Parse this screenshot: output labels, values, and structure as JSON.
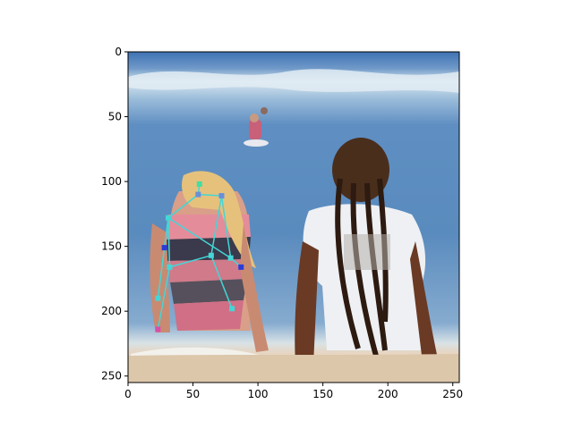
{
  "figure": {
    "kind": "image plot with pose-keypoint overlay",
    "xlim": [
      0,
      255
    ],
    "ylim": [
      255,
      0
    ],
    "x_ticks": [
      {
        "value": 0,
        "label": "0"
      },
      {
        "value": 50,
        "label": "50"
      },
      {
        "value": 100,
        "label": "100"
      },
      {
        "value": 150,
        "label": "150"
      },
      {
        "value": 200,
        "label": "200"
      },
      {
        "value": 250,
        "label": "250"
      }
    ],
    "y_ticks": [
      {
        "value": 0,
        "label": "0"
      },
      {
        "value": 50,
        "label": "50"
      },
      {
        "value": 100,
        "label": "100"
      },
      {
        "value": 150,
        "label": "150"
      },
      {
        "value": 200,
        "label": "200"
      },
      {
        "value": 250,
        "label": "250"
      }
    ],
    "colors": {
      "sky_band": "#3f72b4",
      "sea_deep": "#4f86bd",
      "sea_light": "#8cb1d3",
      "foam": "#d8e6f0",
      "sand": "#e3d3be",
      "skeleton_cyan": "#44d6d6",
      "skeleton_blue": "#6a8fd8",
      "skeleton_magenta": "#d84fa8"
    }
  },
  "keypoints": [
    {
      "name": "head-top",
      "x": 55,
      "y": 102,
      "color": "#3fe0a0"
    },
    {
      "name": "neck",
      "x": 54,
      "y": 110,
      "color": "#6a8fd8"
    },
    {
      "name": "right-shoulder",
      "x": 31,
      "y": 128,
      "color": "#44d6d6"
    },
    {
      "name": "left-shoulder",
      "x": 72,
      "y": 111,
      "color": "#6a8fd8"
    },
    {
      "name": "right-elbow",
      "x": 28,
      "y": 151,
      "color": "#2b3bd8"
    },
    {
      "name": "left-elbow",
      "x": 79,
      "y": 159,
      "color": "#44d6d6"
    },
    {
      "name": "right-wrist",
      "x": 23,
      "y": 190,
      "color": "#44d6d6"
    },
    {
      "name": "left-wrist",
      "x": 87,
      "y": 166,
      "color": "#2b3bd8"
    },
    {
      "name": "right-hip",
      "x": 32,
      "y": 166,
      "color": "#44d6d6"
    },
    {
      "name": "left-hip",
      "x": 64,
      "y": 157,
      "color": "#44d6d6"
    },
    {
      "name": "right-knee",
      "x": 23,
      "y": 214,
      "color": "#d84fa8"
    },
    {
      "name": "left-knee",
      "x": 80,
      "y": 198,
      "color": "#44d6d6"
    }
  ],
  "skeleton": [
    [
      "head-top",
      "neck"
    ],
    [
      "neck",
      "right-shoulder"
    ],
    [
      "neck",
      "left-shoulder"
    ],
    [
      "right-shoulder",
      "right-elbow"
    ],
    [
      "right-elbow",
      "right-wrist"
    ],
    [
      "left-shoulder",
      "left-elbow"
    ],
    [
      "left-elbow",
      "left-wrist"
    ],
    [
      "right-shoulder",
      "right-hip"
    ],
    [
      "left-shoulder",
      "left-hip"
    ],
    [
      "right-hip",
      "left-hip"
    ],
    [
      "right-hip",
      "right-knee"
    ],
    [
      "left-hip",
      "left-knee"
    ],
    [
      "right-shoulder",
      "left-elbow"
    ]
  ]
}
